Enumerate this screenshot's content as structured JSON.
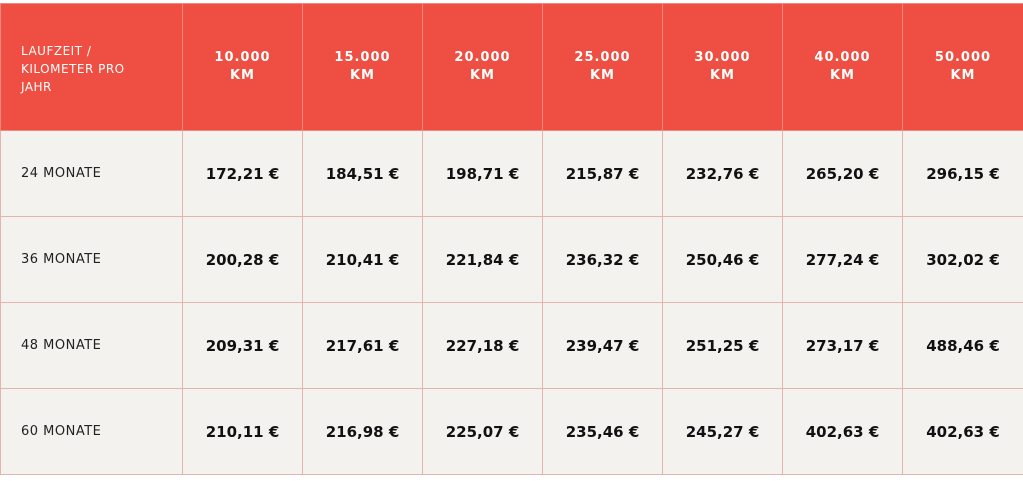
{
  "table": {
    "header": [
      "LAUFZEIT / KILOMETER PRO JAHR",
      "10.000 KM",
      "15.000 KM",
      "20.000 KM",
      "25.000 KM",
      "30.000 KM",
      "40.000 KM",
      "50.000 KM"
    ],
    "rows": [
      [
        "24 MONATE",
        "172,21 €",
        "184,51 €",
        "198,71 €",
        "215,87 €",
        "232,76 €",
        "265,20 €",
        "296,15 €"
      ],
      [
        "36 MONATE",
        "200,28 €",
        "210,41 €",
        "221,84 €",
        "236,32 €",
        "250,46 €",
        "277,24 €",
        "302,02 €"
      ],
      [
        "48 MONATE",
        "209,31 €",
        "217,61 €",
        "227,18 €",
        "239,47 €",
        "251,25 €",
        "273,17 €",
        "488,46 €"
      ],
      [
        "60 MONATE",
        "210,11 €",
        "216,98 €",
        "225,07 €",
        "235,46 €",
        "245,27 €",
        "402,63 €",
        "402,63 €"
      ]
    ]
  }
}
